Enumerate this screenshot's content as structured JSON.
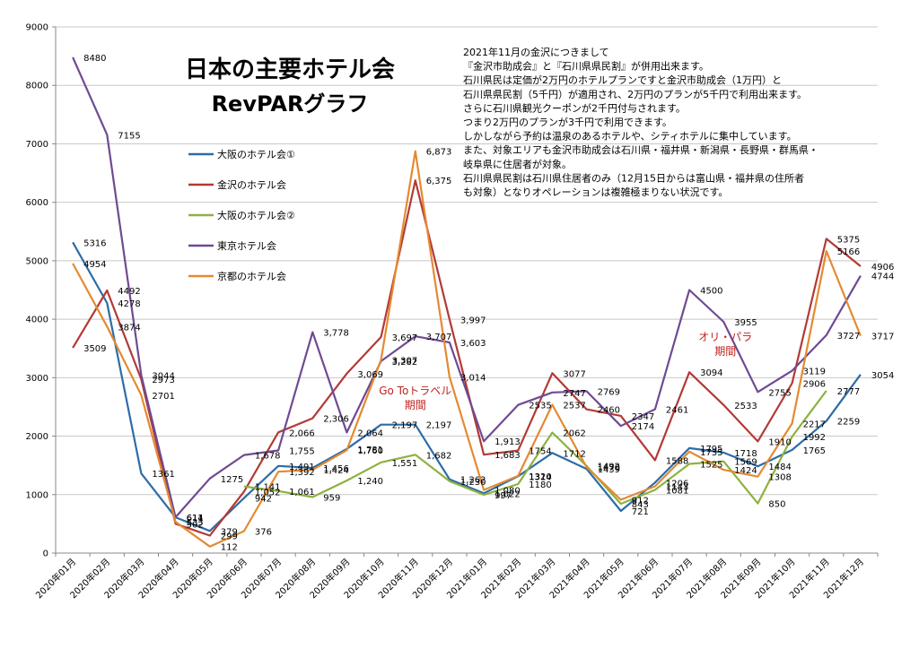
{
  "chart_data": {
    "type": "line",
    "title": "日本の主要ホテル会",
    "subtitle": "RevPARグラフ",
    "xlabel": "",
    "ylabel": "",
    "ylim": [
      0,
      9000
    ],
    "yticks": [
      0,
      1000,
      2000,
      3000,
      4000,
      5000,
      6000,
      7000,
      8000,
      9000
    ],
    "grid": "horizontal",
    "legend_position": "upper-left inside",
    "categories": [
      "2020年01月",
      "2020年02月",
      "2020年03月",
      "2020年04月",
      "2020年05月",
      "2020年06月",
      "2020年07月",
      "2020年08月",
      "2020年09月",
      "2020年10月",
      "2020年11月",
      "2020年12月",
      "2021年01月",
      "2021年02月",
      "2021年03月",
      "2021年04月",
      "2021年05月",
      "2021年06月",
      "2021年07月",
      "2021年08月",
      "2021年09月",
      "2021年10月",
      "2021年11月",
      "2021年12月"
    ],
    "series": [
      {
        "name": "大阪のホテル会①",
        "color": "#2e6ca8",
        "values": [
          5316,
          4278,
          1361,
          611,
          379,
          942,
          1491,
          1456,
          1781,
          2197,
          2197,
          1262,
          1022,
          1314,
          1712,
          1439,
          721,
          1206,
          1795,
          1718,
          1484,
          1765,
          2259,
          3054
        ],
        "labels": [
          "5316",
          "4278",
          "1361",
          "611",
          "379",
          "942",
          "1,491",
          "1,456",
          "1,781",
          "2,197",
          "2,197",
          "1,262",
          "1,022",
          "1314",
          "1712",
          "1439",
          "721",
          "1206",
          "1795",
          "1718",
          "1484",
          "1765",
          "2259",
          "3054"
        ]
      },
      {
        "name": "金沢のホテル会",
        "color": "#b23a36",
        "values": [
          3509,
          4492,
          2973,
          502,
          299,
          1052,
          2066,
          2306,
          3069,
          3697,
          6375,
          3997,
          1683,
          1754,
          3077,
          2460,
          2347,
          1588,
          3094,
          2533,
          1910,
          2906,
          5375,
          4906
        ],
        "labels": [
          "3509",
          "4492",
          "2973",
          "502",
          "299",
          "1,052",
          "2,066",
          "2,306",
          "3,069",
          "3,697",
          "6,375",
          "3,997",
          "1,683",
          "1754",
          "3077",
          "2460",
          "2347",
          "1588",
          "3094",
          "2533",
          "1910",
          "2906",
          "5375",
          "4906"
        ]
      },
      {
        "name": "大阪のホテル会②",
        "color": "#8db23f",
        "values": [
          null,
          null,
          null,
          null,
          null,
          1141,
          1061,
          959,
          1240,
          1551,
          1682,
          1230,
          997,
          1180,
          2062,
          1492,
          843,
          1081,
          1525,
          1569,
          850,
          1992,
          2777,
          null
        ],
        "labels": [
          "",
          "",
          "",
          "",
          "",
          "1,141",
          "1,061",
          "959",
          "1,240",
          "1,551",
          "1,682",
          "1,230",
          "997",
          "1180",
          "2062",
          "1492",
          "843",
          "1081",
          "1525",
          "1569",
          "850",
          "1992",
          "2777",
          ""
        ]
      },
      {
        "name": "東京ホテル会",
        "color": "#6f4a92",
        "values": [
          8480,
          7155,
          3044,
          614,
          1275,
          1678,
          1755,
          3778,
          2064,
          3282,
          3707,
          3603,
          1913,
          2535,
          2747,
          2769,
          2174,
          2461,
          4500,
          3955,
          2755,
          3119,
          3727,
          4744
        ],
        "labels": [
          "8480",
          "7155",
          "3044",
          "614",
          "1275",
          "1,678",
          "1,755",
          "3,778",
          "2,064",
          "3,282",
          "3,707",
          "3,603",
          "1,913",
          "2535",
          "2747",
          "2769",
          "2174",
          "2461",
          "4500",
          "3955",
          "2755",
          "3119",
          "3727",
          "4744"
        ]
      },
      {
        "name": "京都のホテル会",
        "color": "#e48a32",
        "values": [
          4954,
          3874,
          2701,
          533,
          112,
          376,
          1392,
          1424,
          1760,
          3307,
          6873,
          3014,
          1080,
          1320,
          2537,
          1470,
          912,
          1143,
          1735,
          1424,
          1308,
          2217,
          5166,
          3717
        ],
        "labels": [
          "4954",
          "3874",
          "2701",
          "533",
          "112",
          "376",
          "1,392",
          "1,424",
          "1,760",
          "3,307",
          "6,873",
          "3,014",
          "1,080",
          "1320",
          "2537",
          "1470",
          "912",
          "1143",
          "1735",
          "1424",
          "1308",
          "2217",
          "5166",
          "3717"
        ]
      }
    ],
    "annotations": [
      {
        "text": "Go Toトラベル",
        "line2": "期間",
        "at_index": 10
      },
      {
        "text": "オリ・パラ",
        "line2": "期間",
        "at_index": 19
      }
    ],
    "notes": [
      "2021年11月の金沢につきまして",
      "『金沢市助成会』と『石川県県民割』が併用出来ます。",
      "石川県民は定価が2万円のホテルプランですと金沢市助成会（1万円）と",
      "石川県県民割（5千円）が適用され、2万円のプランが5千円で利用出来ます。",
      "さらに石川県観光クーポンが2千円付与されます。",
      "つまり2万円のプランが3千円で利用できます。",
      "しかしながら予約は温泉のあるホテルや、シティホテルに集中しています。",
      "また、対象エリアも金沢市助成会は石川県・福井県・新潟県・長野県・群馬県・",
      "岐阜県に住居者が対象。",
      "石川県県民割は石川県住居者のみ（12月15日からは富山県・福井県の住所者",
      "も対象）となりオペレーションは複雑極まりない状況です。"
    ]
  }
}
